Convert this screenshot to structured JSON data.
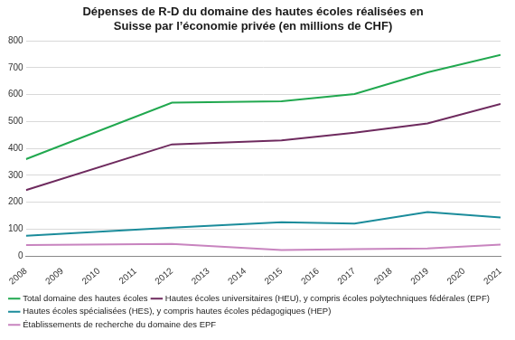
{
  "chart_data": {
    "type": "line",
    "title": [
      "Dépenses de R-D du domaine des hautes écoles réalisées en",
      "Suisse par l’économie privée (en millions de CHF)"
    ],
    "x": [
      2008,
      2012,
      2015,
      2017,
      2019,
      2021
    ],
    "series": [
      {
        "name": "Total domaine des hautes écoles",
        "color": "#21a84f",
        "values": [
          360,
          570,
          575,
          602,
          683,
          748
        ]
      },
      {
        "name": "Hautes écoles universitaires (HEU), y compris écoles polytechniques fédérales (EPF)",
        "color": "#6e2a5e",
        "values": [
          245,
          415,
          430,
          458,
          493,
          565
        ]
      },
      {
        "name": "Hautes écoles spécialisées (HES), y compris hautes écoles pédagogiques (HEP)",
        "color": "#1b8c9b",
        "values": [
          75,
          105,
          125,
          120,
          163,
          143
        ]
      },
      {
        "name": "Établissements de recherche du domaine des EPF",
        "color": "#c884bf",
        "values": [
          40,
          45,
          22,
          25,
          28,
          42
        ]
      }
    ],
    "xlim": [
      2008,
      2021
    ],
    "xticks": [
      2008,
      2009,
      2010,
      2011,
      2012,
      2013,
      2014,
      2015,
      2016,
      2017,
      2018,
      2019,
      2020,
      2021
    ],
    "ylim": [
      0,
      800
    ],
    "yticks": [
      0,
      100,
      200,
      300,
      400,
      500,
      600,
      700,
      800
    ],
    "grid": "y",
    "legend": "bottom"
  }
}
